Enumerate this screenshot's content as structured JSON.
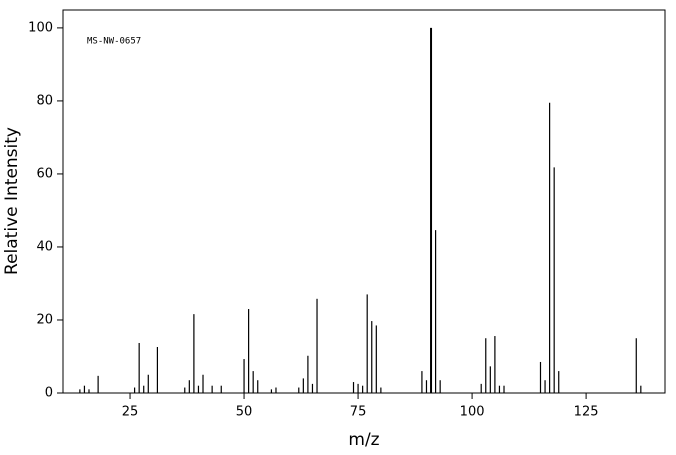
{
  "chart_data": {
    "type": "bar",
    "annotation": "MS-NW-0657",
    "xlabel": "m/z",
    "ylabel": "Relative Intensity",
    "x": [
      14,
      15,
      16,
      18,
      26,
      27,
      28,
      29,
      31,
      37,
      38,
      39,
      40,
      41,
      43,
      45,
      50,
      51,
      52,
      53,
      56,
      57,
      62,
      63,
      64,
      65,
      66,
      74,
      75,
      76,
      77,
      78,
      79,
      80,
      89,
      90,
      91,
      92,
      93,
      102,
      103,
      104,
      105,
      106,
      107,
      115,
      116,
      117,
      118,
      119,
      136,
      137
    ],
    "values": [
      1,
      2,
      1,
      4.7,
      1.5,
      13.7,
      2,
      5,
      12.6,
      1.5,
      3.5,
      21.6,
      2,
      5,
      2,
      2,
      9.3,
      23,
      6,
      3.5,
      1,
      1.5,
      1.5,
      4,
      10.2,
      2.5,
      25.8,
      3,
      2.5,
      2,
      27,
      19.7,
      18.5,
      1.5,
      6,
      3.5,
      100,
      44.6,
      3.5,
      2.5,
      15,
      7.3,
      15.6,
      2,
      2,
      8.5,
      3.5,
      79.5,
      61.8,
      6,
      15,
      2
    ],
    "color": "#000000",
    "xlim": [
      10.3,
      142.3
    ],
    "ylim": [
      0,
      104.9
    ],
    "xticks": [
      25,
      50,
      75,
      100,
      125
    ],
    "yticks": [
      0,
      20,
      40,
      60,
      80,
      100
    ]
  }
}
